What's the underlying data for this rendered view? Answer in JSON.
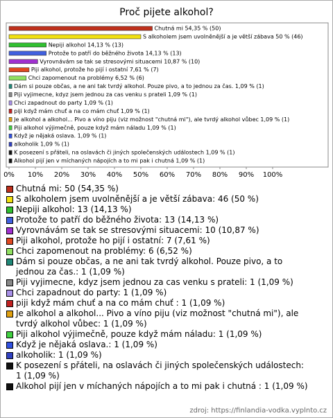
{
  "chart_data": {
    "type": "bar",
    "orientation": "horizontal",
    "title": "Proč pijete alkohol?",
    "values": [
      54.35,
      50,
      14.13,
      14.13,
      10.87,
      7.61,
      6.52,
      1.09,
      1.09,
      1.09,
      1.09,
      1.09,
      1.09,
      1.09,
      1.09,
      1.09,
      1.09
    ],
    "value_labels": [
      "Chutná mi 54,35 % (50)",
      "S alkoholem jsem uvolněnější a je větší zábava 50 % (46)",
      "Nepiji alkohol 14,13 % (13)",
      "Protože to patří do běžného života 14,13 % (13)",
      "Vyrovnávám se tak se stresovými situacemi 10,87 % (10)",
      "Piji alkohol, protože ho pijí i ostatní 7,61 % (7)",
      "Chci zapomenout na problémy 6,52 % (6)",
      "Dám si pouze občas, a ne ani tak tvrdý alkohol. Pouze pivo, a to jednou za čas. 1,09 % (1)",
      "Piji vyjimecne, kdyz jsem jednou za cas venku s prateli 1,09 % (1)",
      "Chci zapadnout do party 1,09 % (1)",
      "piji když mám chuť a na co mám chuť  1,09 % (1)",
      "Je alkohol a alkohol... Pivo a víno piju (viz možnost \"chutná mi\"), ale tvrdý alkohol vůbec 1,09 % (1)",
      "Piji alkohol výjimečně, pouze když mám náladu  1,09 % (1)",
      "Když je nějaká oslava. 1,09 % (1)",
      "alkoholik 1,09 % (1)",
      "K posezení s přáteli, na oslavách či jiných společenských událostech 1,09 % (1)",
      "Alkohol pijí jen v míchaných nápojích a to mi pak i chutná  1,09 % (1)"
    ],
    "legend_labels": [
      "Chutná mi: 50 (54,35 %)",
      "S alkoholem jsem uvolněnější a je větší zábava: 46 (50 %)",
      "Nepiji alkohol: 13 (14,13 %)",
      "Protože to patří do běžného života: 13 (14,13 %)",
      "Vyrovnávám se tak se stresovými situacemi: 10 (10,87 %)",
      "Piji alkohol, protože ho pijí i ostatní: 7 (7,61 %)",
      "Chci zapomenout na problémy: 6 (6,52 %)",
      "Dám si pouze občas, a ne ani tak tvrdý alkohol. Pouze pivo, a to jednou za čas.: 1 (1,09 %)",
      "Piji vyjimecne, kdyz jsem jednou za cas venku s prateli: 1 (1,09 %)",
      "Chci zapadnout do party: 1 (1,09 %)",
      "piji když mám chuť a na co mám chuť : 1 (1,09 %)",
      "Je alkohol a alkohol... Pivo a víno piju (viz možnost \"chutná mi\"), ale tvrdý alkohol vůbec: 1 (1,09 %)",
      "Piji alkohol výjimečně, pouze když mám náladu: 1 (1,09 %)",
      "Když je nějaká oslava.: 1 (1,09 %)",
      "alkoholik: 1 (1,09 %)",
      "K posezení s přáteli, na oslavách či jiných společenských událostech: 1 (1,09 %)",
      "Alkohol pijí jen v míchaných nápojích a to mi pak i chutná : 1 (1,09 %)"
    ],
    "colors": [
      "#c0301c",
      "#f0e010",
      "#30c030",
      "#4060e0",
      "#a030d0",
      "#e04820",
      "#90e060",
      "#208878",
      "#888888",
      "#a890e8",
      "#c02020",
      "#e0a010",
      "#40d040",
      "#3050e0",
      "#3040c0",
      "#101010",
      "#101010"
    ],
    "xlim": [
      0,
      100
    ],
    "xticks": [
      {
        "value": 0,
        "label": "0%"
      },
      {
        "value": 10,
        "label": "10%"
      },
      {
        "value": 20,
        "label": "20%"
      },
      {
        "value": 30,
        "label": "30%"
      },
      {
        "value": 40,
        "label": "40%"
      },
      {
        "value": 50,
        "label": "50%"
      },
      {
        "value": 60,
        "label": "60%"
      },
      {
        "value": 70,
        "label": "70%"
      },
      {
        "value": 80,
        "label": "80%"
      },
      {
        "value": 90,
        "label": "90%"
      },
      {
        "value": 100,
        "label": "100%"
      }
    ],
    "source": "zdroj: https://finlandia-vodka.vyplnto.cz"
  }
}
